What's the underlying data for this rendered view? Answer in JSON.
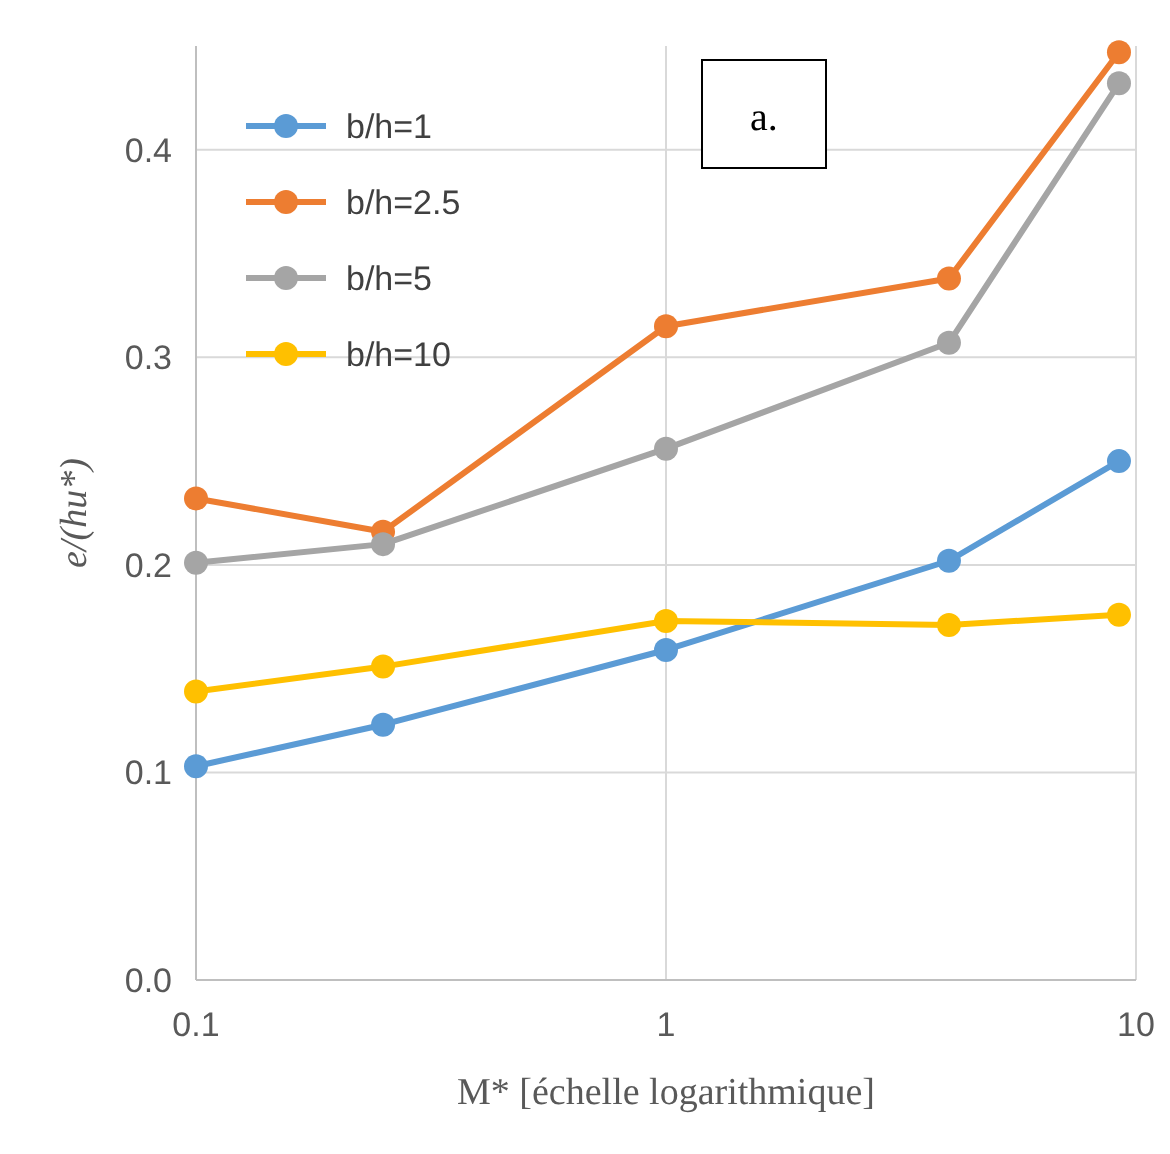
{
  "chart_data": {
    "type": "line",
    "xlabel": "M* [échelle logarithmique]",
    "ylabel": "e/(hu*)",
    "log": "x",
    "grid": true,
    "legend": "top left",
    "marker": "circle",
    "line_style": "solid",
    "x": [
      0.1,
      0.25,
      1,
      4,
      9.2
    ],
    "xlim": [
      0.1,
      10
    ],
    "xticks": [
      0.1,
      1,
      10
    ],
    "ylim": [
      0,
      0.45
    ],
    "yticks": [
      {
        "value": 0,
        "label": "0.0"
      },
      0.1,
      0.2,
      0.3,
      0.4
    ],
    "annotations": [
      "a."
    ],
    "series": [
      {
        "name": "b/h=1",
        "color": "#5b9bd5",
        "values": [
          0.103,
          0.123,
          0.159,
          0.202,
          0.25
        ]
      },
      {
        "name": "b/h=2.5",
        "color": "#ed7d31",
        "values": [
          0.232,
          0.216,
          0.315,
          0.338,
          0.447
        ]
      },
      {
        "name": "b/h=5",
        "color": "#a5a5a5",
        "values": [
          0.201,
          0.21,
          0.256,
          0.307,
          0.432
        ]
      },
      {
        "name": "b/h=10",
        "color": "#ffc000",
        "values": [
          0.139,
          0.151,
          0.173,
          0.171,
          0.176
        ]
      }
    ]
  }
}
